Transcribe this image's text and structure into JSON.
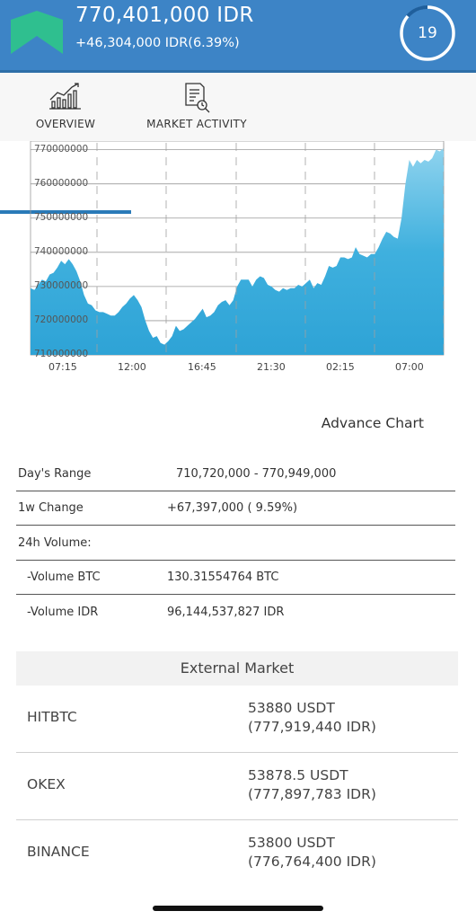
{
  "header": {
    "price": "770,401,000 IDR",
    "change": "+46,304,000 IDR(6.39%)",
    "timer": "19",
    "trend_icon": "up-arrow-icon",
    "colors": {
      "bar": "#3d84c6",
      "arrow": "#2fbf8f"
    }
  },
  "tabs": [
    {
      "label": "OVERVIEW",
      "icon": "line-chart-icon",
      "active": true
    },
    {
      "label": "MARKET ACTIVITY",
      "icon": "document-search-icon",
      "active": false
    }
  ],
  "chart_data": {
    "type": "area",
    "x_ticks": [
      "07:15",
      "12:00",
      "16:45",
      "21:30",
      "02:15",
      "07:00"
    ],
    "y_ticks": [
      "770000000",
      "760000000",
      "750000000",
      "740000000",
      "730000000",
      "720000000",
      "710000000"
    ],
    "ylim": [
      710000000,
      772000000
    ],
    "grid": true,
    "fill_color": "#35a6d8",
    "values": [
      729500000,
      729000000,
      730500000,
      732000000,
      731500000,
      733500000,
      734000000,
      735500000,
      737500000,
      736500000,
      738000000,
      736500000,
      734500000,
      731500000,
      727500000,
      725000000,
      724500000,
      723000000,
      722500000,
      722500000,
      722000000,
      721500000,
      721500000,
      722500000,
      724000000,
      725000000,
      726500000,
      727500000,
      726000000,
      724000000,
      720000000,
      717000000,
      715000000,
      715500000,
      713500000,
      713000000,
      714000000,
      715500000,
      718500000,
      717000000,
      717500000,
      718500000,
      719500000,
      720500000,
      722000000,
      723500000,
      721000000,
      721500000,
      722500000,
      724500000,
      725500000,
      726000000,
      724500000,
      726000000,
      730000000,
      732000000,
      732000000,
      732000000,
      730000000,
      732000000,
      733000000,
      732500000,
      730500000,
      730000000,
      729000000,
      728500000,
      729500000,
      729000000,
      729500000,
      729500000,
      730500000,
      730000000,
      731000000,
      732000000,
      729500000,
      731000000,
      730500000,
      733000000,
      736000000,
      735500000,
      736000000,
      738500000,
      738500000,
      738000000,
      738500000,
      741500000,
      739500000,
      739000000,
      738500000,
      739500000,
      739500000,
      741500000,
      744000000,
      746000000,
      745500000,
      744500000,
      744000000,
      750000000,
      760000000,
      767000000,
      765000000,
      767000000,
      766000000,
      767000000,
      766500000,
      767500000,
      770000000,
      769500000,
      770500000
    ]
  },
  "advance_chart": "Advance Chart",
  "stats": [
    {
      "label": "Day's Range",
      "value": "710,720,000 - 770,949,000",
      "sub": false
    },
    {
      "label": "1w Change",
      "value": "+67,397,000 ( 9.59%)",
      "sub": false
    },
    {
      "label": "24h Volume:",
      "value": "",
      "sub": false
    },
    {
      "label": "-Volume BTC",
      "value": "130.31554764 BTC",
      "sub": true
    },
    {
      "label": "-Volume IDR",
      "value": "96,144,537,827 IDR",
      "sub": true
    }
  ],
  "external_market": {
    "title": "External Market",
    "rows": [
      {
        "name": "HITBTC",
        "usdt": "53880 USDT",
        "idr": "(777,919,440 IDR)"
      },
      {
        "name": "OKEX",
        "usdt": "53878.5 USDT",
        "idr": "(777,897,783 IDR)"
      },
      {
        "name": "BINANCE",
        "usdt": "53800 USDT",
        "idr": "(776,764,400 IDR)"
      }
    ]
  }
}
